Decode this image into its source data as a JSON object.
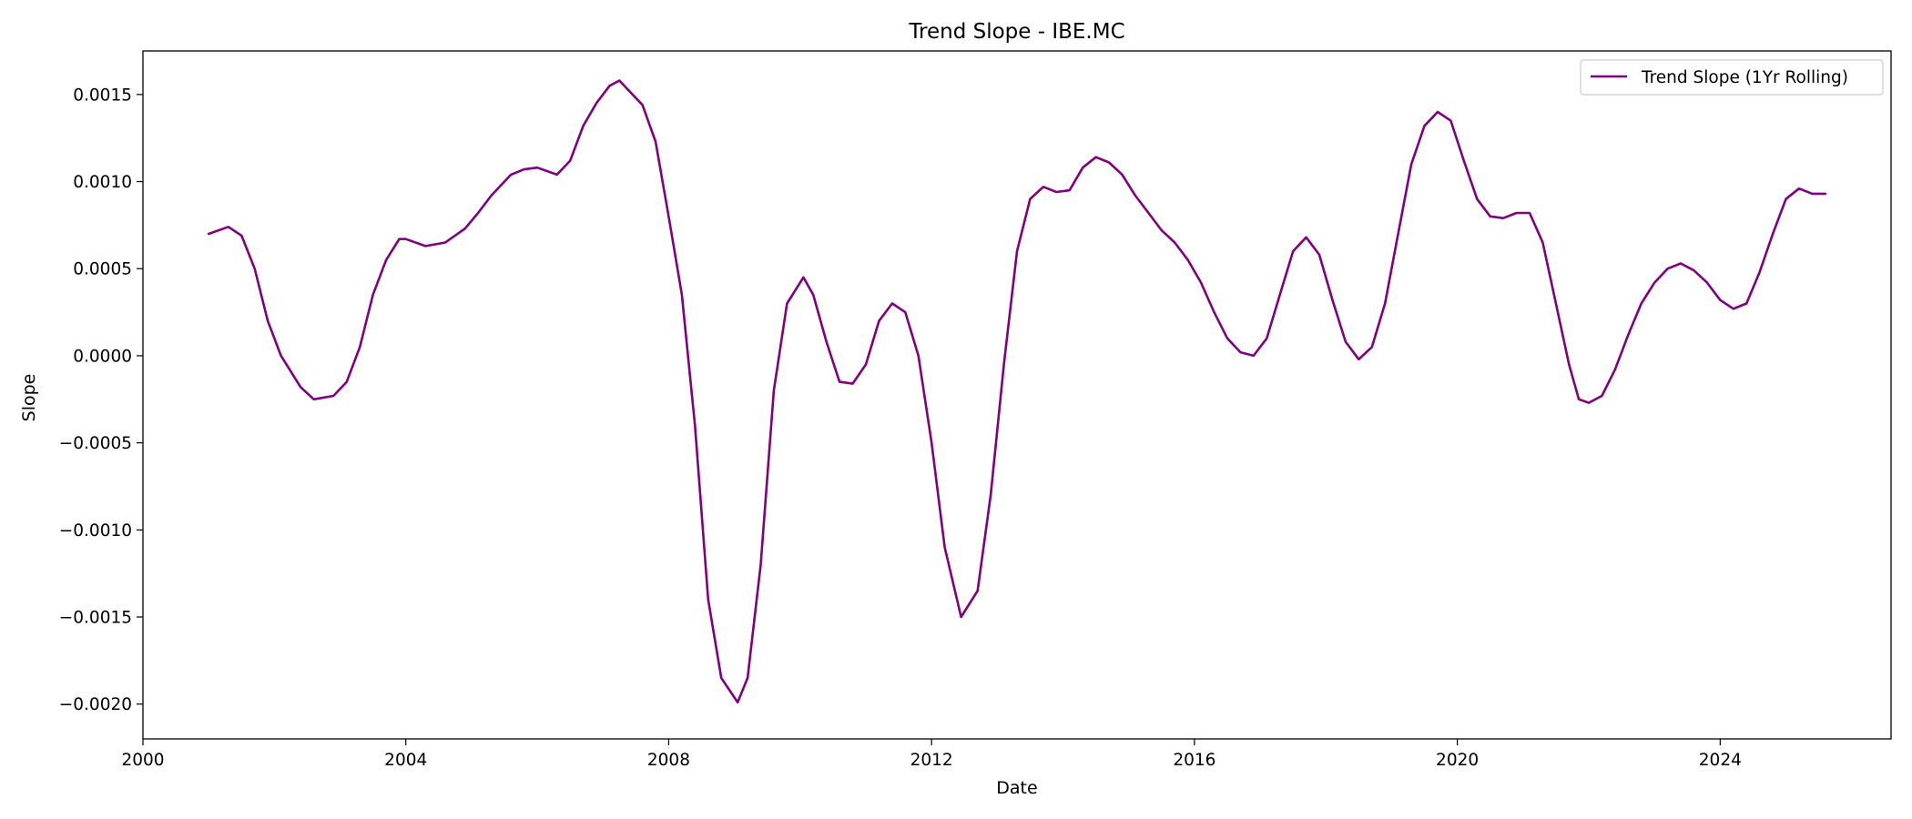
{
  "chart_data": {
    "type": "line",
    "title": "Trend Slope - IBE.MC",
    "xlabel": "Date",
    "ylabel": "Slope",
    "xlim": [
      2000.0,
      2026.6
    ],
    "ylim": [
      -0.0022,
      0.00175
    ],
    "grid": false,
    "legend_position": "top-right",
    "x_ticks": [
      {
        "value": 2000,
        "label": "2000"
      },
      {
        "value": 2004,
        "label": "2004"
      },
      {
        "value": 2008,
        "label": "2008"
      },
      {
        "value": 2012,
        "label": "2012"
      },
      {
        "value": 2016,
        "label": "2016"
      },
      {
        "value": 2020,
        "label": "2020"
      },
      {
        "value": 2024,
        "label": "2024"
      }
    ],
    "y_ticks": [
      {
        "value": 0.0015,
        "label": "0.0015"
      },
      {
        "value": 0.001,
        "label": "0.0010"
      },
      {
        "value": 0.0005,
        "label": "0.0005"
      },
      {
        "value": 0.0,
        "label": "0.0000"
      },
      {
        "value": -0.0005,
        "label": "−0.0005"
      },
      {
        "value": -0.001,
        "label": "−0.0010"
      },
      {
        "value": -0.0015,
        "label": "−0.0015"
      },
      {
        "value": -0.002,
        "label": "−0.0020"
      }
    ],
    "series": [
      {
        "name": "Trend Slope (1Yr Rolling)",
        "color": "#800080",
        "points": [
          [
            2001.0,
            0.0007
          ],
          [
            2001.3,
            0.00074
          ],
          [
            2001.5,
            0.00069
          ],
          [
            2001.7,
            0.0005
          ],
          [
            2001.9,
            0.0002
          ],
          [
            2002.1,
            0.0
          ],
          [
            2002.4,
            -0.00018
          ],
          [
            2002.6,
            -0.00025
          ],
          [
            2002.9,
            -0.00023
          ],
          [
            2003.1,
            -0.00015
          ],
          [
            2003.3,
            5e-05
          ],
          [
            2003.5,
            0.00035
          ],
          [
            2003.7,
            0.00055
          ],
          [
            2003.9,
            0.00067
          ],
          [
            2004.0,
            0.00067
          ],
          [
            2004.3,
            0.00063
          ],
          [
            2004.6,
            0.00065
          ],
          [
            2004.9,
            0.00073
          ],
          [
            2005.1,
            0.00082
          ],
          [
            2005.3,
            0.00092
          ],
          [
            2005.6,
            0.00104
          ],
          [
            2005.8,
            0.00107
          ],
          [
            2006.0,
            0.00108
          ],
          [
            2006.3,
            0.00104
          ],
          [
            2006.5,
            0.00112
          ],
          [
            2006.7,
            0.00132
          ],
          [
            2006.9,
            0.00145
          ],
          [
            2007.1,
            0.00155
          ],
          [
            2007.25,
            0.00158
          ],
          [
            2007.4,
            0.00152
          ],
          [
            2007.6,
            0.00144
          ],
          [
            2007.8,
            0.00123
          ],
          [
            2008.0,
            0.0008
          ],
          [
            2008.2,
            0.00035
          ],
          [
            2008.4,
            -0.0004
          ],
          [
            2008.6,
            -0.0014
          ],
          [
            2008.8,
            -0.00185
          ],
          [
            2009.05,
            -0.00199
          ],
          [
            2009.2,
            -0.00185
          ],
          [
            2009.4,
            -0.0012
          ],
          [
            2009.6,
            -0.0002
          ],
          [
            2009.8,
            0.0003
          ],
          [
            2010.05,
            0.00045
          ],
          [
            2010.2,
            0.00035
          ],
          [
            2010.4,
            8e-05
          ],
          [
            2010.6,
            -0.00015
          ],
          [
            2010.8,
            -0.00016
          ],
          [
            2011.0,
            -5e-05
          ],
          [
            2011.2,
            0.0002
          ],
          [
            2011.4,
            0.0003
          ],
          [
            2011.6,
            0.00025
          ],
          [
            2011.8,
            0.0
          ],
          [
            2012.0,
            -0.0005
          ],
          [
            2012.2,
            -0.0011
          ],
          [
            2012.45,
            -0.0015
          ],
          [
            2012.7,
            -0.00135
          ],
          [
            2012.9,
            -0.0008
          ],
          [
            2013.1,
            -5e-05
          ],
          [
            2013.3,
            0.0006
          ],
          [
            2013.5,
            0.0009
          ],
          [
            2013.7,
            0.00097
          ],
          [
            2013.9,
            0.00094
          ],
          [
            2014.1,
            0.00095
          ],
          [
            2014.3,
            0.00108
          ],
          [
            2014.5,
            0.00114
          ],
          [
            2014.7,
            0.00111
          ],
          [
            2014.9,
            0.00104
          ],
          [
            2015.1,
            0.00092
          ],
          [
            2015.3,
            0.00082
          ],
          [
            2015.5,
            0.00072
          ],
          [
            2015.7,
            0.00065
          ],
          [
            2015.9,
            0.00055
          ],
          [
            2016.1,
            0.00042
          ],
          [
            2016.3,
            0.00025
          ],
          [
            2016.5,
            0.0001
          ],
          [
            2016.7,
            2e-05
          ],
          [
            2016.9,
            0.0
          ],
          [
            2017.1,
            0.0001
          ],
          [
            2017.3,
            0.00035
          ],
          [
            2017.5,
            0.0006
          ],
          [
            2017.7,
            0.00068
          ],
          [
            2017.9,
            0.00058
          ],
          [
            2018.1,
            0.00032
          ],
          [
            2018.3,
            8e-05
          ],
          [
            2018.5,
            -2e-05
          ],
          [
            2018.7,
            5e-05
          ],
          [
            2018.9,
            0.0003
          ],
          [
            2019.1,
            0.0007
          ],
          [
            2019.3,
            0.0011
          ],
          [
            2019.5,
            0.00132
          ],
          [
            2019.7,
            0.0014
          ],
          [
            2019.9,
            0.00135
          ],
          [
            2020.1,
            0.00112
          ],
          [
            2020.3,
            0.0009
          ],
          [
            2020.5,
            0.0008
          ],
          [
            2020.7,
            0.00079
          ],
          [
            2020.9,
            0.00082
          ],
          [
            2021.1,
            0.00082
          ],
          [
            2021.3,
            0.00065
          ],
          [
            2021.5,
            0.0003
          ],
          [
            2021.7,
            -5e-05
          ],
          [
            2021.85,
            -0.00025
          ],
          [
            2022.0,
            -0.00027
          ],
          [
            2022.2,
            -0.00023
          ],
          [
            2022.4,
            -8e-05
          ],
          [
            2022.6,
            0.00012
          ],
          [
            2022.8,
            0.0003
          ],
          [
            2023.0,
            0.00042
          ],
          [
            2023.2,
            0.0005
          ],
          [
            2023.4,
            0.00053
          ],
          [
            2023.6,
            0.00049
          ],
          [
            2023.8,
            0.00042
          ],
          [
            2024.0,
            0.00032
          ],
          [
            2024.2,
            0.00027
          ],
          [
            2024.4,
            0.0003
          ],
          [
            2024.6,
            0.00048
          ],
          [
            2024.8,
            0.0007
          ],
          [
            2025.0,
            0.0009
          ],
          [
            2025.2,
            0.00096
          ],
          [
            2025.4,
            0.00093
          ],
          [
            2025.6,
            0.00093
          ]
        ]
      }
    ]
  }
}
